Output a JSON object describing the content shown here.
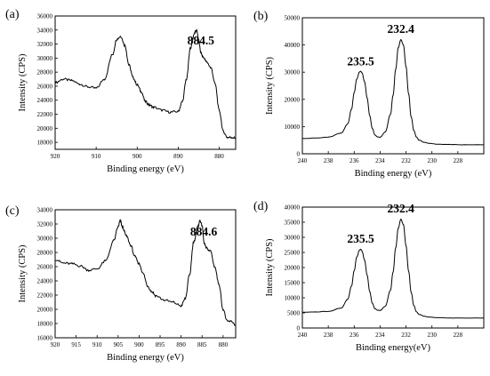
{
  "chart_data": [
    {
      "type": "line",
      "panel_label": "(a)",
      "xlabel": "Binding energy (eV)",
      "ylabel": "Intensity (CPS)",
      "xlim": [
        920,
        876
      ],
      "ylim": [
        17000,
        36000
      ],
      "x_ticks": [
        920,
        910,
        900,
        890,
        880
      ],
      "y_ticks": [
        18000,
        20000,
        22000,
        24000,
        26000,
        28000,
        30000,
        32000,
        34000,
        36000
      ],
      "annotations": [
        {
          "text": "884.5",
          "x": 884.5,
          "y": 31200
        }
      ],
      "series": [
        {
          "x": [
            920,
            918,
            916,
            914,
            912,
            910,
            908,
            906,
            905,
            904,
            903,
            902,
            901,
            900,
            899,
            898,
            897,
            896,
            894,
            892,
            890,
            889,
            888,
            887,
            886,
            885.5,
            885,
            884.5,
            884,
            883,
            882,
            881,
            880,
            879,
            878,
            877,
            876
          ],
          "y": [
            26500,
            27000,
            26800,
            26300,
            25900,
            25700,
            27000,
            30500,
            32700,
            33100,
            31800,
            29000,
            27200,
            26200,
            25200,
            23800,
            23300,
            23000,
            22600,
            22300,
            22400,
            23800,
            27000,
            31500,
            33600,
            34000,
            32500,
            30800,
            30200,
            29400,
            28600,
            26300,
            22500,
            19500,
            18700,
            18700,
            18600
          ]
        }
      ]
    },
    {
      "type": "line",
      "panel_label": "(b)",
      "xlabel": "Binding energy (eV)",
      "ylabel": "Intensity (CPS)",
      "xlim": [
        240,
        226
      ],
      "ylim": [
        0,
        50000
      ],
      "x_ticks": [
        240,
        238,
        236,
        234,
        232,
        230,
        228
      ],
      "y_ticks": [
        0,
        10000,
        20000,
        30000,
        40000,
        50000
      ],
      "annotations": [
        {
          "text": "235.5",
          "x": 235.5,
          "y": 30500
        },
        {
          "text": "232.4",
          "x": 232.4,
          "y": 42500
        }
      ],
      "series": [
        {
          "x": [
            240,
            239,
            238,
            237,
            236.5,
            236.2,
            236,
            235.8,
            235.6,
            235.5,
            235.4,
            235.2,
            235,
            234.8,
            234.6,
            234.4,
            234.2,
            234,
            233.6,
            233.2,
            233,
            232.8,
            232.6,
            232.4,
            232.2,
            232,
            231.8,
            231.6,
            231.4,
            231.2,
            231,
            230.6,
            230.2,
            229.5,
            228.5,
            227.5,
            226
          ],
          "y": [
            5600,
            5800,
            6100,
            7600,
            11000,
            16500,
            22500,
            27500,
            30000,
            30300,
            29800,
            26500,
            20500,
            14000,
            9300,
            6900,
            6200,
            6100,
            8000,
            14500,
            21500,
            31000,
            39000,
            42000,
            40000,
            32000,
            22000,
            13500,
            8600,
            6200,
            5000,
            4200,
            3800,
            3500,
            3400,
            3300,
            3300
          ]
        }
      ]
    },
    {
      "type": "line",
      "panel_label": "(c)",
      "xlabel": "Binding energy (eV)",
      "ylabel": "Intensity (CPS)",
      "xlim": [
        920,
        877
      ],
      "ylim": [
        16000,
        34000
      ],
      "x_ticks": [
        920,
        915,
        910,
        905,
        900,
        895,
        890,
        885,
        880
      ],
      "y_ticks": [
        16000,
        18000,
        20000,
        22000,
        24000,
        26000,
        28000,
        30000,
        32000,
        34000
      ],
      "annotations": [
        {
          "text": "884.6",
          "x": 884.6,
          "y": 29600
        }
      ],
      "series": [
        {
          "x": [
            920,
            918,
            916,
            914,
            912,
            910,
            908,
            906,
            905,
            904.5,
            904,
            903,
            902,
            901,
            900,
            899,
            898,
            897,
            896,
            894,
            892,
            890,
            889,
            888,
            887,
            886,
            885.5,
            885,
            884.5,
            884,
            883,
            882,
            881,
            880,
            879,
            878,
            877
          ],
          "y": [
            27000,
            26500,
            26400,
            26100,
            25500,
            25700,
            26800,
            29700,
            31600,
            32500,
            31600,
            30300,
            29000,
            27400,
            26400,
            25000,
            23300,
            22500,
            21900,
            21300,
            21000,
            20500,
            21500,
            24800,
            29500,
            31600,
            32500,
            31800,
            29300,
            28600,
            28200,
            26000,
            23600,
            20000,
            18300,
            18300,
            17800
          ]
        }
      ]
    },
    {
      "type": "line",
      "panel_label": "(d)",
      "xlabel": "Binding energy(eV)",
      "ylabel": "Intensity (CPS)",
      "xlim": [
        240,
        226
      ],
      "ylim": [
        0,
        40000
      ],
      "x_ticks": [
        240,
        238,
        236,
        234,
        232,
        230,
        228
      ],
      "y_ticks": [
        0,
        5000,
        10000,
        15000,
        20000,
        25000,
        30000,
        35000,
        40000
      ],
      "annotations": [
        {
          "text": "235.5",
          "x": 235.5,
          "y": 26500
        },
        {
          "text": "232.4",
          "x": 232.4,
          "y": 36500
        }
      ],
      "series": [
        {
          "x": [
            240,
            239,
            238,
            237,
            236.5,
            236.2,
            236,
            235.8,
            235.6,
            235.5,
            235.4,
            235.2,
            235,
            234.8,
            234.6,
            234.4,
            234.2,
            234,
            233.6,
            233.2,
            233,
            232.8,
            232.6,
            232.4,
            232.2,
            232,
            231.8,
            231.6,
            231.4,
            231.2,
            231,
            230.6,
            230.2,
            229.5,
            228.5,
            227.5,
            226
          ],
          "y": [
            5200,
            5300,
            5500,
            6600,
            9500,
            14000,
            19000,
            23500,
            25700,
            26100,
            25500,
            22500,
            17500,
            12000,
            8200,
            6400,
            5900,
            5800,
            7200,
            12500,
            18500,
            26500,
            33000,
            36000,
            34200,
            27200,
            18800,
            11800,
            7500,
            5400,
            4500,
            3900,
            3600,
            3400,
            3300,
            3300,
            3300
          ]
        }
      ]
    }
  ]
}
